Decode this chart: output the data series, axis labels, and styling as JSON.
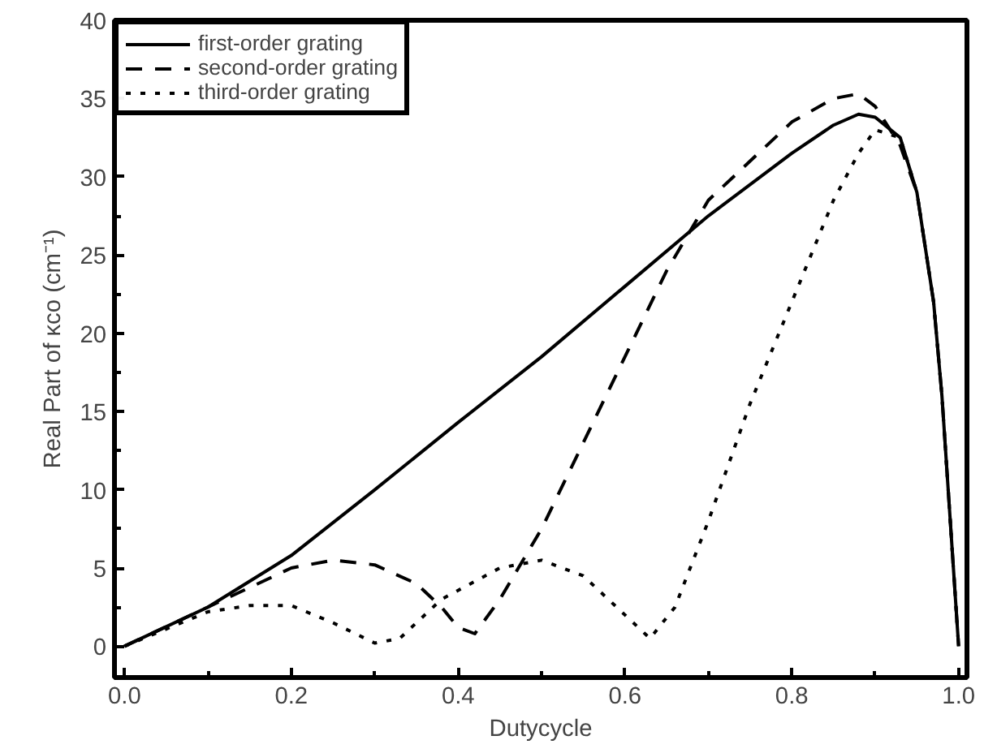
{
  "chart_data": {
    "type": "line",
    "xlabel": "Dutycycle",
    "ylabel": "Real Part of κco (cm⁻¹)",
    "xlim": [
      -0.012,
      1.01
    ],
    "ylim": [
      -2,
      40
    ],
    "xticks": [
      {
        "value": 0.1,
        "label": null
      },
      {
        "value": 0.0,
        "label": "0.0"
      },
      0.2,
      {
        "value": 0.3,
        "label": null
      },
      0.4,
      {
        "value": 0.5,
        "label": null
      },
      0.6,
      {
        "value": 0.7,
        "label": null
      },
      0.8,
      {
        "value": 0.9,
        "label": null
      },
      {
        "value": 1.0,
        "label": "1.0"
      }
    ],
    "yticks": [
      0,
      {
        "value": 2.5,
        "label": null
      },
      5,
      {
        "value": 7.5,
        "label": null
      },
      10,
      {
        "value": 12.5,
        "label": null
      },
      15,
      {
        "value": 17.5,
        "label": null
      },
      20,
      {
        "value": 22.5,
        "label": null
      },
      25,
      {
        "value": 27.5,
        "label": null
      },
      30,
      35,
      40
    ],
    "grid": false,
    "legend": "top left",
    "series": [
      {
        "name": "first-order grating",
        "color": "#000000",
        "line_style": "solid",
        "x": [
          0,
          0.1,
          0.2,
          0.3,
          0.4,
          0.5,
          0.6,
          0.7,
          0.8,
          0.85,
          0.88,
          0.9,
          0.93,
          0.95,
          0.97,
          0.98,
          0.99,
          1.0
        ],
        "values": [
          0,
          2.5,
          5.8,
          10,
          14.3,
          18.5,
          23,
          27.5,
          31.5,
          33.3,
          34,
          33.8,
          32.5,
          29,
          22,
          16,
          8,
          0
        ]
      },
      {
        "name": "second-order grating",
        "color": "#000000",
        "line_style": "dashed",
        "x": [
          0,
          0.1,
          0.2,
          0.25,
          0.3,
          0.35,
          0.38,
          0.4,
          0.42,
          0.45,
          0.5,
          0.55,
          0.6,
          0.65,
          0.7,
          0.75,
          0.8,
          0.85,
          0.88,
          0.9,
          0.93,
          0.95,
          0.97,
          0.98,
          0.99,
          1.0
        ],
        "values": [
          0,
          2.5,
          5,
          5.5,
          5.2,
          4,
          2.5,
          1.2,
          0.8,
          3,
          7.5,
          13,
          18.5,
          24,
          28.5,
          31,
          33.5,
          35,
          35.3,
          34.5,
          32,
          29,
          22,
          16,
          8,
          0
        ]
      },
      {
        "name": "third-order grating",
        "color": "#000000",
        "line_style": "dotted",
        "x": [
          0,
          0.1,
          0.15,
          0.2,
          0.25,
          0.3,
          0.33,
          0.38,
          0.45,
          0.5,
          0.55,
          0.6,
          0.63,
          0.66,
          0.7,
          0.75,
          0.8,
          0.85,
          0.88,
          0.9,
          0.93,
          0.95,
          0.97,
          0.98,
          0.99,
          1.0
        ],
        "values": [
          0,
          2.2,
          2.6,
          2.6,
          1.5,
          0.2,
          0.5,
          3,
          5,
          5.5,
          4.5,
          2,
          0.5,
          2.5,
          8,
          15.5,
          22,
          28.5,
          31.5,
          33,
          32.5,
          29,
          22,
          16,
          8,
          0
        ]
      }
    ]
  }
}
